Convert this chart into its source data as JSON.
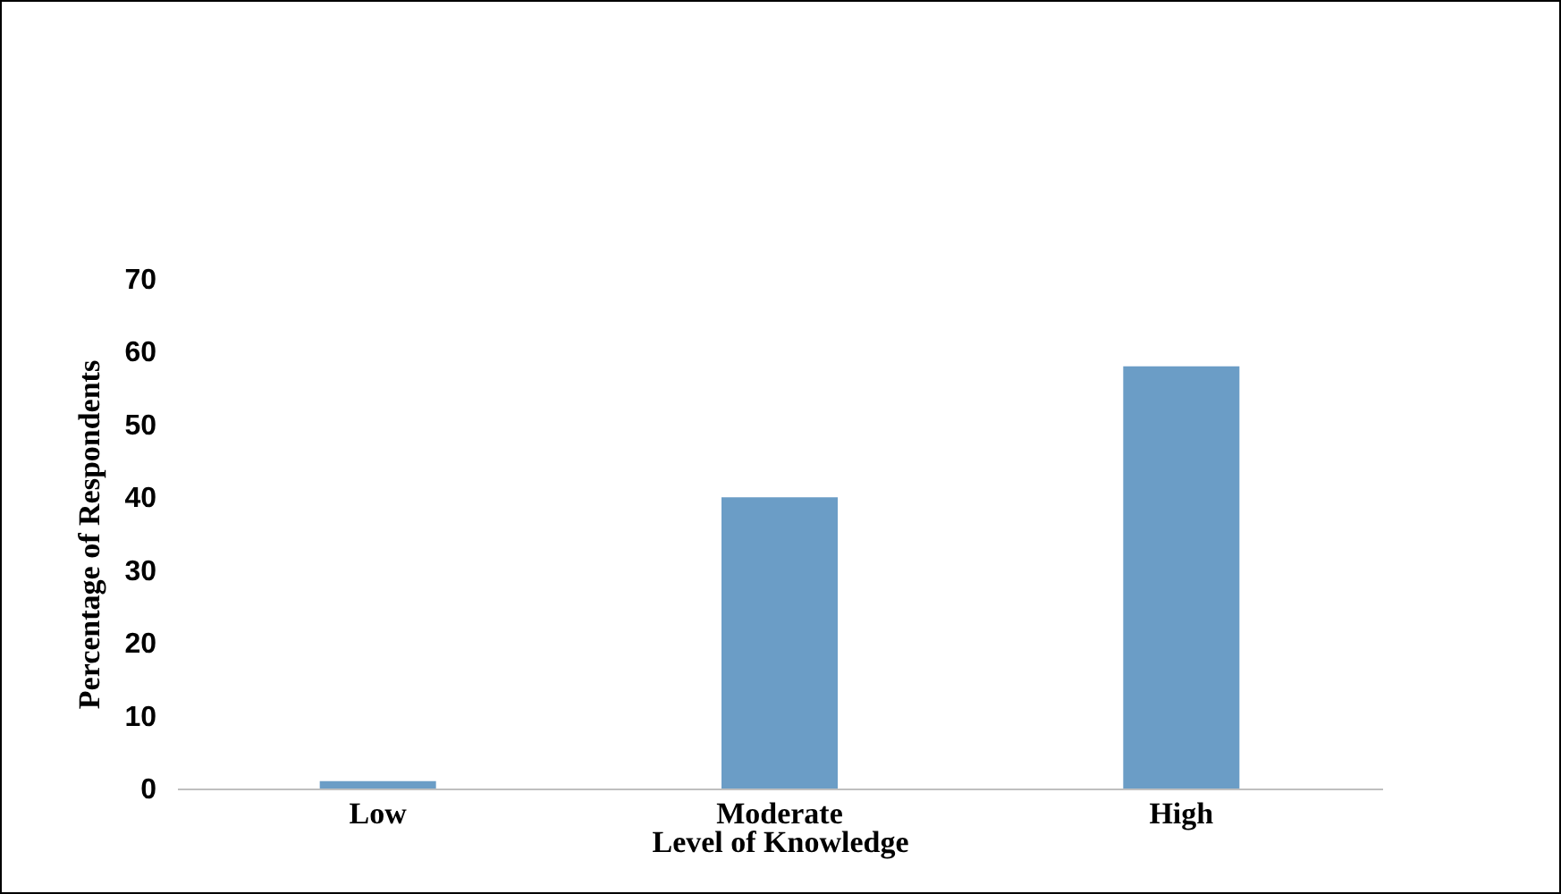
{
  "chart_data": {
    "type": "bar",
    "xlabel": "Level of Knowledge",
    "ylabel": "Percentage of Respondents",
    "categories": [
      "Low",
      "Moderate",
      "High"
    ],
    "values": [
      1,
      40,
      58
    ],
    "color": "#6b9dc6",
    "ylim": [
      0,
      70
    ],
    "yticks": [
      0,
      10,
      20,
      30,
      40,
      50,
      60,
      70
    ],
    "grid": false
  }
}
